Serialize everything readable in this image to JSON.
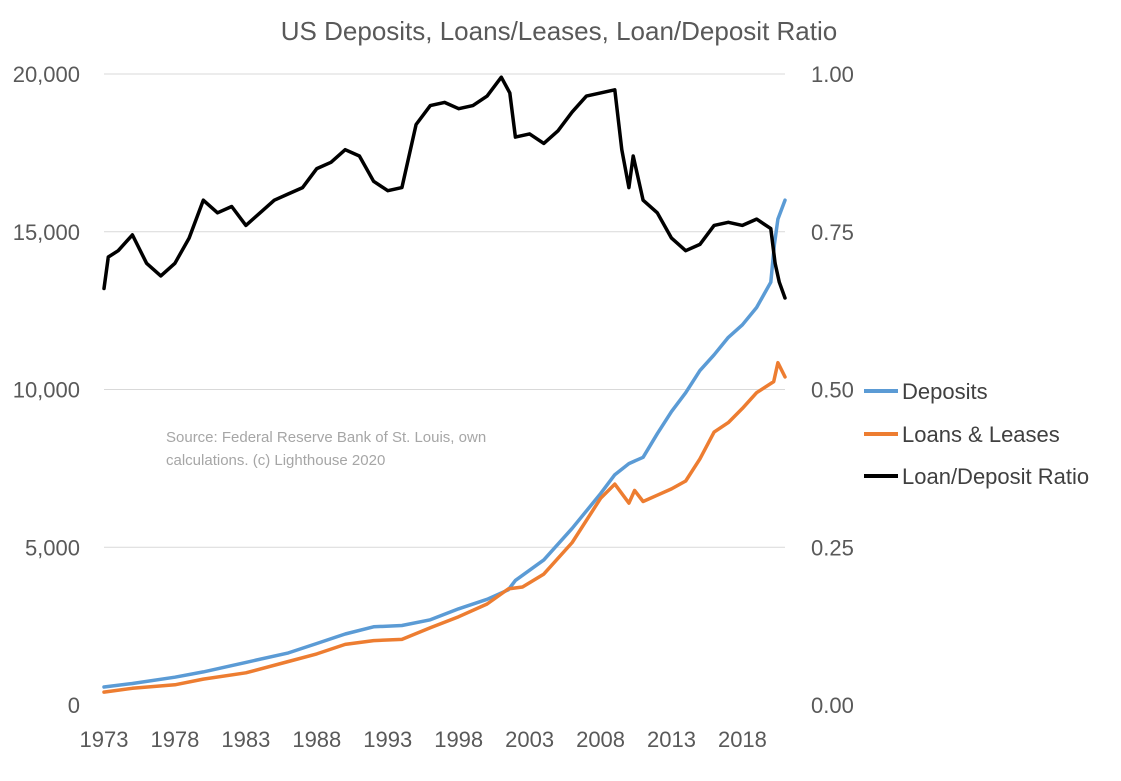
{
  "chart_data": {
    "type": "line",
    "title": "US Deposits, Loans/Leases, Loan/Deposit Ratio",
    "x_range": [
      1973,
      2021
    ],
    "x_ticks": [
      "1973",
      "1978",
      "1983",
      "1988",
      "1993",
      "1998",
      "2003",
      "2008",
      "2013",
      "2018"
    ],
    "y_left": {
      "range": [
        0,
        20000
      ],
      "ticks": [
        "0",
        "5,000",
        "10,000",
        "15,000",
        "20,000"
      ]
    },
    "y_right": {
      "range": [
        0,
        1
      ],
      "ticks": [
        "0.00",
        "0.25",
        "0.50",
        "0.75",
        "1.00"
      ]
    },
    "grid": true,
    "legend_position": "right",
    "annotation": {
      "lines": [
        "Source: Federal Reserve Bank of St. Louis, own",
        "calculations. (c) Lighthouse 2020"
      ]
    },
    "series": [
      {
        "name": "Deposits",
        "axis": "left",
        "color": "#5b9bd5",
        "points": [
          [
            1973,
            570
          ],
          [
            1975,
            680
          ],
          [
            1978,
            880
          ],
          [
            1980,
            1050
          ],
          [
            1983,
            1350
          ],
          [
            1986,
            1650
          ],
          [
            1988,
            1950
          ],
          [
            1990,
            2250
          ],
          [
            1992,
            2480
          ],
          [
            1994,
            2520
          ],
          [
            1996,
            2700
          ],
          [
            1998,
            3050
          ],
          [
            2000,
            3350
          ],
          [
            2001.5,
            3650
          ],
          [
            2002,
            3950
          ],
          [
            2004,
            4600
          ],
          [
            2006,
            5600
          ],
          [
            2008,
            6700
          ],
          [
            2009,
            7300
          ],
          [
            2010,
            7650
          ],
          [
            2011,
            7850
          ],
          [
            2012,
            8600
          ],
          [
            2013,
            9300
          ],
          [
            2014,
            9900
          ],
          [
            2015,
            10600
          ],
          [
            2016,
            11100
          ],
          [
            2017,
            11650
          ],
          [
            2018,
            12050
          ],
          [
            2019,
            12600
          ],
          [
            2020,
            13400
          ],
          [
            2020.25,
            14600
          ],
          [
            2020.5,
            15400
          ],
          [
            2021,
            16000
          ]
        ]
      },
      {
        "name": "Loans & Leases",
        "axis": "left",
        "color": "#ed7d31",
        "points": [
          [
            1973,
            410
          ],
          [
            1975,
            530
          ],
          [
            1978,
            640
          ],
          [
            1980,
            820
          ],
          [
            1983,
            1020
          ],
          [
            1986,
            1380
          ],
          [
            1988,
            1620
          ],
          [
            1990,
            1920
          ],
          [
            1992,
            2040
          ],
          [
            1994,
            2080
          ],
          [
            1996,
            2450
          ],
          [
            1998,
            2800
          ],
          [
            2000,
            3200
          ],
          [
            2001.5,
            3680
          ],
          [
            2002.5,
            3740
          ],
          [
            2004,
            4150
          ],
          [
            2006,
            5150
          ],
          [
            2008,
            6550
          ],
          [
            2009,
            7000
          ],
          [
            2010,
            6400
          ],
          [
            2010.4,
            6800
          ],
          [
            2011,
            6450
          ],
          [
            2012,
            6650
          ],
          [
            2013,
            6850
          ],
          [
            2014,
            7100
          ],
          [
            2015,
            7800
          ],
          [
            2016,
            8650
          ],
          [
            2017,
            8950
          ],
          [
            2018,
            9400
          ],
          [
            2019,
            9900
          ],
          [
            2020.2,
            10250
          ],
          [
            2020.5,
            10850
          ],
          [
            2021,
            10400
          ]
        ]
      },
      {
        "name": "Loan/Deposit Ratio",
        "axis": "right",
        "color": "#000000",
        "points": [
          [
            1973,
            0.66
          ],
          [
            1973.3,
            0.71
          ],
          [
            1974,
            0.72
          ],
          [
            1975,
            0.745
          ],
          [
            1976,
            0.7
          ],
          [
            1977,
            0.68
          ],
          [
            1978,
            0.7
          ],
          [
            1979,
            0.74
          ],
          [
            1980,
            0.8
          ],
          [
            1981,
            0.78
          ],
          [
            1982,
            0.79
          ],
          [
            1983,
            0.76
          ],
          [
            1984,
            0.78
          ],
          [
            1985,
            0.8
          ],
          [
            1986,
            0.81
          ],
          [
            1987,
            0.82
          ],
          [
            1988,
            0.85
          ],
          [
            1989,
            0.86
          ],
          [
            1990,
            0.88
          ],
          [
            1991,
            0.87
          ],
          [
            1992,
            0.83
          ],
          [
            1993,
            0.815
          ],
          [
            1994,
            0.82
          ],
          [
            1995,
            0.92
          ],
          [
            1996,
            0.95
          ],
          [
            1997,
            0.955
          ],
          [
            1998,
            0.945
          ],
          [
            1999,
            0.95
          ],
          [
            2000,
            0.965
          ],
          [
            2001,
            0.995
          ],
          [
            2001.6,
            0.97
          ],
          [
            2002,
            0.9
          ],
          [
            2003,
            0.905
          ],
          [
            2004,
            0.89
          ],
          [
            2005,
            0.91
          ],
          [
            2006,
            0.94
          ],
          [
            2007,
            0.965
          ],
          [
            2008,
            0.97
          ],
          [
            2009,
            0.975
          ],
          [
            2009.5,
            0.88
          ],
          [
            2010,
            0.82
          ],
          [
            2010.3,
            0.87
          ],
          [
            2011,
            0.8
          ],
          [
            2012,
            0.78
          ],
          [
            2013,
            0.74
          ],
          [
            2014,
            0.72
          ],
          [
            2015,
            0.73
          ],
          [
            2016,
            0.76
          ],
          [
            2017,
            0.765
          ],
          [
            2018,
            0.76
          ],
          [
            2019,
            0.77
          ],
          [
            2020,
            0.755
          ],
          [
            2020.3,
            0.7
          ],
          [
            2020.6,
            0.67
          ],
          [
            2021,
            0.645
          ]
        ]
      }
    ]
  }
}
